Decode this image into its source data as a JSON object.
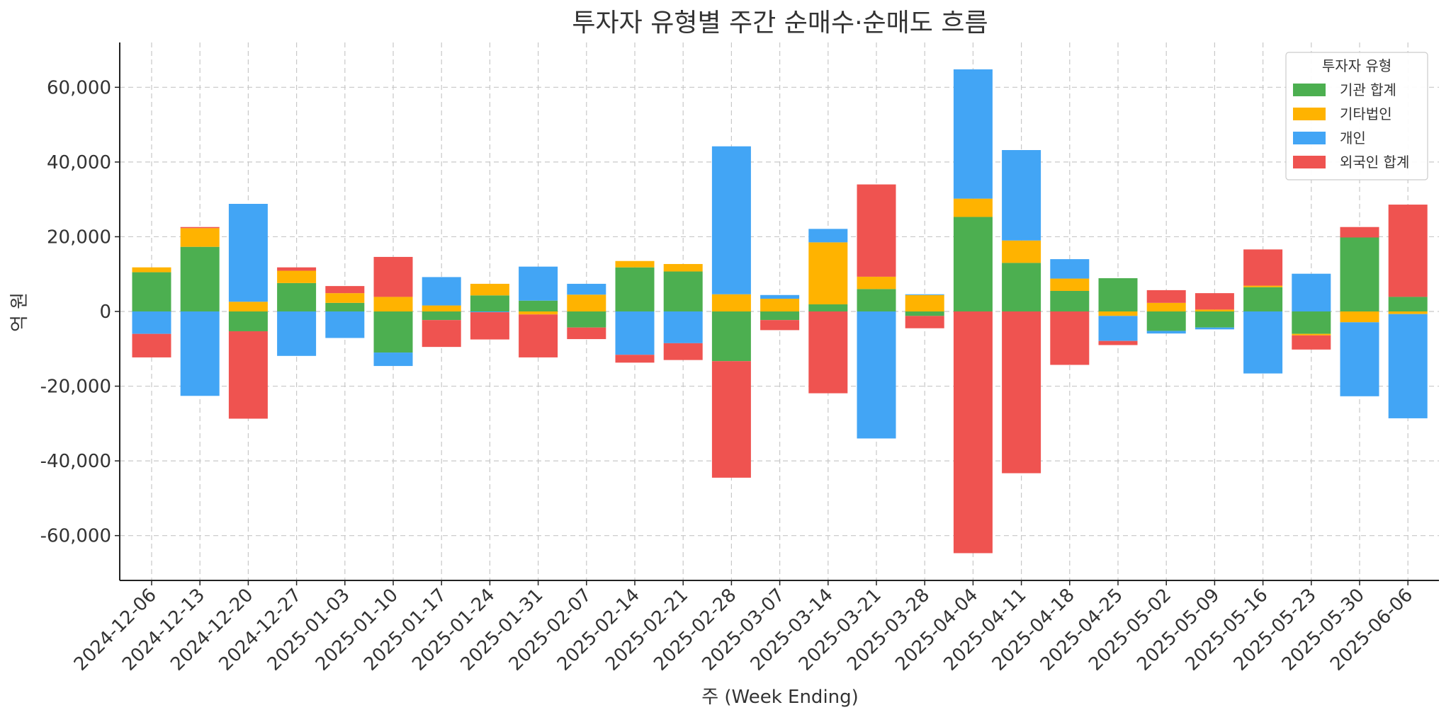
{
  "chart_data": {
    "type": "bar",
    "stacked": true,
    "title": "투자자 유형별 주간 순매수·순매도 흐름",
    "xlabel": "주 (Week Ending)",
    "ylabel": "억 원",
    "ylim": [
      -72000,
      72000
    ],
    "yticks": [
      -60000,
      -40000,
      -20000,
      0,
      20000,
      40000,
      60000
    ],
    "ytick_labels": [
      "-60,000",
      "-40,000",
      "-20,000",
      "0",
      "20,000",
      "40,000",
      "60,000"
    ],
    "grid": true,
    "legend": {
      "title": "투자자 유형",
      "position": "top-right"
    },
    "categories": [
      "2024-12-06",
      "2024-12-13",
      "2024-12-20",
      "2024-12-27",
      "2025-01-03",
      "2025-01-10",
      "2025-01-17",
      "2025-01-24",
      "2025-01-31",
      "2025-02-07",
      "2025-02-14",
      "2025-02-21",
      "2025-02-28",
      "2025-03-07",
      "2025-03-14",
      "2025-03-21",
      "2025-03-28",
      "2025-04-04",
      "2025-04-11",
      "2025-04-18",
      "2025-04-25",
      "2025-05-02",
      "2025-05-09",
      "2025-05-16",
      "2025-05-23",
      "2025-05-30",
      "2025-06-06"
    ],
    "series": [
      {
        "name": "기관 합계",
        "color": "#4caf50",
        "values": [
          10500,
          17300,
          -5300,
          7600,
          2300,
          -11000,
          -2300,
          4300,
          2900,
          -4300,
          11800,
          10700,
          -13300,
          -2300,
          1900,
          6000,
          -1200,
          25300,
          13000,
          5500,
          8900,
          -5200,
          -4300,
          6500,
          -6000,
          19800,
          3900
        ]
      },
      {
        "name": "기타법인",
        "color": "#ffb300",
        "values": [
          1300,
          5000,
          2600,
          3300,
          2600,
          3900,
          1600,
          3100,
          -800,
          4500,
          1700,
          2000,
          4600,
          3400,
          16600,
          3300,
          4400,
          4900,
          6000,
          3300,
          -1200,
          2300,
          500,
          400,
          -400,
          -2900,
          -700
        ]
      },
      {
        "name": "개인",
        "color": "#42a5f5",
        "values": [
          -6000,
          -22600,
          26200,
          -11900,
          -7100,
          -3600,
          7600,
          -200,
          9100,
          2900,
          -11600,
          -8500,
          39600,
          1000,
          3600,
          -34000,
          200,
          34600,
          24200,
          5200,
          -6700,
          -700,
          -500,
          -16600,
          10100,
          -19800,
          -27900
        ]
      },
      {
        "name": "외국인 합계",
        "color": "#ef5350",
        "values": [
          -6300,
          300,
          -23400,
          900,
          1900,
          10700,
          -7200,
          -7300,
          -11500,
          -3100,
          -2100,
          -4500,
          -31200,
          -2700,
          -21900,
          24700,
          -3300,
          -64700,
          -43300,
          -14300,
          -1100,
          3400,
          4400,
          9700,
          -3800,
          2800,
          24700
        ]
      }
    ]
  }
}
